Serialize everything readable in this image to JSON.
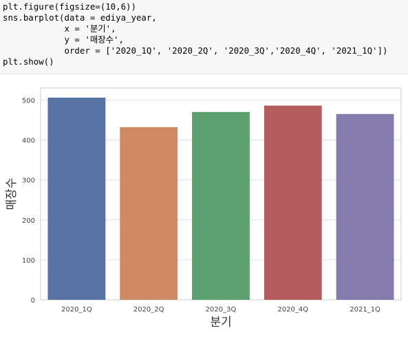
{
  "code": {
    "lines": [
      "plt.figure(figsize=(10,6))",
      "sns.barplot(data = ediya_year,",
      "            x = '분기',",
      "            y = '매장수',",
      "            order = ['2020_1Q', '2020_2Q', '2020_3Q','2020_4Q', '2021_1Q'])",
      "plt.show()"
    ]
  },
  "chart_data": {
    "type": "bar",
    "categories": [
      "2020_1Q",
      "2020_2Q",
      "2020_3Q",
      "2020_4Q",
      "2021_1Q"
    ],
    "values": [
      506,
      432,
      470,
      486,
      465
    ],
    "xlabel": "분기",
    "ylabel": "매장수",
    "ylim": [
      0,
      530
    ],
    "yticks": [
      0,
      100,
      200,
      300,
      400,
      500
    ],
    "grid": true,
    "colors": [
      "#5874a4",
      "#ce8a63",
      "#5ca06f",
      "#b55c5f",
      "#857bac"
    ]
  }
}
